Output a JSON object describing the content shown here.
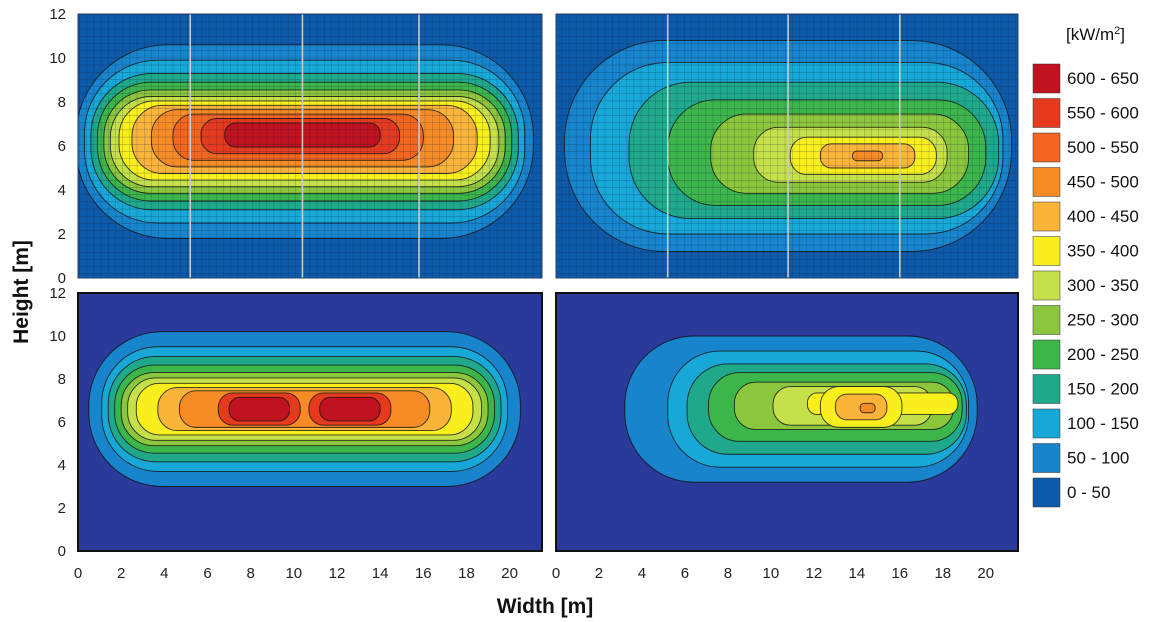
{
  "x_axis_label": "Width [m]",
  "y_axis_label": "Height [m]",
  "chart_data": [
    {
      "type": "heatmap",
      "panel": "top-left",
      "grid_overlay": true,
      "xlim": [
        0,
        21.5
      ],
      "ylim": [
        0,
        12
      ],
      "x_ticks": [
        "0",
        "2",
        "4",
        "6",
        "8",
        "10",
        "12",
        "14",
        "16",
        "18",
        "20"
      ],
      "y_ticks": [
        "0",
        "2",
        "4",
        "6",
        "8",
        "10",
        "12"
      ],
      "vertical_lines_x": [
        5.2,
        10.4,
        15.8
      ],
      "contours": [
        {
          "level": "0-50",
          "rx": 0,
          "ry": 0
        },
        {
          "level": "50-100",
          "cx": 10.5,
          "cy": 6.2,
          "rx": 10.6,
          "ry": 4.4,
          "r": 0.95
        },
        {
          "level": "100-150",
          "cx": 10.5,
          "cy": 6.2,
          "rx": 10.2,
          "ry": 3.7,
          "r": 0.9
        },
        {
          "level": "150-200",
          "cx": 10.5,
          "cy": 6.2,
          "rx": 9.9,
          "ry": 3.1,
          "r": 0.9
        },
        {
          "level": "200-250",
          "cx": 10.5,
          "cy": 6.2,
          "rx": 9.6,
          "ry": 2.7,
          "r": 0.9
        },
        {
          "level": "250-300",
          "cx": 10.5,
          "cy": 6.2,
          "rx": 9.3,
          "ry": 2.35,
          "r": 0.9
        },
        {
          "level": "300-350",
          "cx": 10.5,
          "cy": 6.2,
          "rx": 9.0,
          "ry": 2.05,
          "r": 0.9
        },
        {
          "level": "350-400",
          "cx": 10.5,
          "cy": 6.25,
          "rx": 8.6,
          "ry": 1.8,
          "r": 0.9
        },
        {
          "level": "400-450",
          "cx": 10.5,
          "cy": 6.3,
          "rx": 8.0,
          "ry": 1.55,
          "r": 0.9
        },
        {
          "level": "450-500",
          "cx": 10.4,
          "cy": 6.35,
          "rx": 7.0,
          "ry": 1.3,
          "r": 0.9
        },
        {
          "level": "500-550",
          "cx": 10.2,
          "cy": 6.4,
          "rx": 5.8,
          "ry": 1.05,
          "r": 0.9
        },
        {
          "level": "550-600",
          "cx": 10.3,
          "cy": 6.45,
          "rx": 4.6,
          "ry": 0.8,
          "r": 0.9
        },
        {
          "level": "600-650",
          "cx": 10.4,
          "cy": 6.5,
          "rx": 3.6,
          "ry": 0.55,
          "r": 0.9
        }
      ]
    },
    {
      "type": "heatmap",
      "panel": "top-right",
      "grid_overlay": true,
      "xlim": [
        0,
        21.5
      ],
      "ylim": [
        0,
        12
      ],
      "vertical_lines_x": [
        5.2,
        10.8,
        16.0
      ],
      "contours": [
        {
          "level": "0-50",
          "rx": 0,
          "ry": 0
        },
        {
          "level": "50-100",
          "cx": 10.8,
          "cy": 6.0,
          "rx": 10.4,
          "ry": 4.8,
          "r": 0.95
        },
        {
          "level": "100-150",
          "cx": 11.2,
          "cy": 5.9,
          "rx": 9.6,
          "ry": 3.9,
          "r": 0.9
        },
        {
          "level": "150-200",
          "cx": 12.0,
          "cy": 5.8,
          "rx": 8.6,
          "ry": 3.1,
          "r": 0.9
        },
        {
          "level": "200-250",
          "cx": 12.6,
          "cy": 5.7,
          "rx": 7.4,
          "ry": 2.4,
          "r": 0.9
        },
        {
          "level": "250-300",
          "cx": 13.2,
          "cy": 5.65,
          "rx": 6.0,
          "ry": 1.8,
          "r": 0.9
        },
        {
          "level": "300-350",
          "cx": 13.7,
          "cy": 5.6,
          "rx": 4.5,
          "ry": 1.25,
          "r": 0.9
        },
        {
          "level": "350-400",
          "cx": 14.3,
          "cy": 5.55,
          "rx": 3.4,
          "ry": 0.85,
          "r": 0.9
        },
        {
          "level": "400-450",
          "cx": 14.5,
          "cy": 5.55,
          "rx": 2.2,
          "ry": 0.55,
          "r": 0.9
        },
        {
          "level": "450-500",
          "cx": 14.5,
          "cy": 5.55,
          "rx": 0.7,
          "ry": 0.22,
          "r": 0.9
        }
      ]
    },
    {
      "type": "heatmap",
      "panel": "bottom-left",
      "grid_overlay": false,
      "xlim": [
        0,
        21.5
      ],
      "ylim": [
        0,
        12
      ],
      "x_ticks": [
        "0",
        "2",
        "4",
        "6",
        "8",
        "10",
        "12",
        "14",
        "16",
        "18",
        "20"
      ],
      "y_ticks": [
        "0",
        "2",
        "4",
        "6",
        "8",
        "10",
        "12"
      ],
      "contours": [
        {
          "level": "0-50",
          "rx": 0,
          "ry": 0
        },
        {
          "level": "50-100",
          "cx": 10.5,
          "cy": 6.6,
          "rx": 10.0,
          "ry": 3.6,
          "r": 0.95
        },
        {
          "level": "100-150",
          "cx": 10.5,
          "cy": 6.6,
          "rx": 9.4,
          "ry": 2.9,
          "r": 0.9
        },
        {
          "level": "150-200",
          "cx": 10.5,
          "cy": 6.6,
          "rx": 9.1,
          "ry": 2.45,
          "r": 0.9
        },
        {
          "level": "200-250",
          "cx": 10.5,
          "cy": 6.6,
          "rx": 8.8,
          "ry": 2.05,
          "r": 0.9
        },
        {
          "level": "250-300",
          "cx": 10.5,
          "cy": 6.6,
          "rx": 8.5,
          "ry": 1.7,
          "r": 0.9
        },
        {
          "level": "300-350",
          "cx": 10.5,
          "cy": 6.6,
          "rx": 8.2,
          "ry": 1.45,
          "r": 0.9
        },
        {
          "level": "350-400",
          "cx": 10.5,
          "cy": 6.6,
          "rx": 7.8,
          "ry": 1.2,
          "r": 0.9
        },
        {
          "level": "400-450",
          "cx": 10.5,
          "cy": 6.6,
          "rx": 6.8,
          "ry": 1.0,
          "r": 0.9
        },
        {
          "level": "450-500",
          "cx": 10.5,
          "cy": 6.6,
          "rx": 5.8,
          "ry": 0.85,
          "r": 0.9
        },
        {
          "level": "550-600",
          "cx": 8.4,
          "cy": 6.6,
          "rx": 1.9,
          "ry": 0.75,
          "r": 0.9
        },
        {
          "level": "550-600",
          "cx": 12.6,
          "cy": 6.6,
          "rx": 1.9,
          "ry": 0.75,
          "r": 0.9
        },
        {
          "level": "600-650",
          "cx": 8.4,
          "cy": 6.6,
          "rx": 1.4,
          "ry": 0.55,
          "r": 0.9
        },
        {
          "level": "600-650",
          "cx": 12.6,
          "cy": 6.6,
          "rx": 1.4,
          "ry": 0.55,
          "r": 0.9
        }
      ]
    },
    {
      "type": "heatmap",
      "panel": "bottom-right",
      "grid_overlay": false,
      "xlim": [
        0,
        21.5
      ],
      "ylim": [
        0,
        12
      ],
      "x_ticks": [
        "0",
        "2",
        "4",
        "6",
        "8",
        "10",
        "12",
        "14",
        "16",
        "18",
        "20"
      ],
      "contours": [
        {
          "level": "0-50",
          "rx": 0,
          "ry": 0
        },
        {
          "level": "50-100",
          "cx": 11.4,
          "cy": 6.6,
          "rx": 8.2,
          "ry": 3.4,
          "r": 0.95
        },
        {
          "level": "100-150",
          "cx": 12.2,
          "cy": 6.6,
          "rx": 7.0,
          "ry": 2.7,
          "r": 0.9
        },
        {
          "level": "150-200",
          "cx": 12.6,
          "cy": 6.6,
          "rx": 6.5,
          "ry": 2.1,
          "r": 0.9
        },
        {
          "level": "200-250",
          "cx": 13.0,
          "cy": 6.7,
          "rx": 5.9,
          "ry": 1.6,
          "r": 0.9
        },
        {
          "level": "250-300",
          "cx": 13.4,
          "cy": 6.75,
          "rx": 5.1,
          "ry": 1.1,
          "r": 0.9
        },
        {
          "level": "300-350",
          "cx": 13.8,
          "cy": 6.75,
          "rx": 3.7,
          "ry": 0.9,
          "r": 0.9
        },
        {
          "level": "350-400",
          "cx": 15.2,
          "cy": 6.85,
          "rx": 3.5,
          "ry": 0.5,
          "r": 0.9
        },
        {
          "level": "350-400",
          "cx": 14.2,
          "cy": 6.7,
          "rx": 1.9,
          "ry": 0.95,
          "r": 0.9
        },
        {
          "level": "400-450",
          "cx": 14.2,
          "cy": 6.7,
          "rx": 1.2,
          "ry": 0.6,
          "r": 0.9
        },
        {
          "level": "450-500",
          "cx": 14.5,
          "cy": 6.65,
          "rx": 0.35,
          "ry": 0.22,
          "r": 0.9
        }
      ]
    }
  ],
  "legend": {
    "title_prefix": "[kW/m",
    "title_sup": "2",
    "title_suffix": "]",
    "placement": "right",
    "entries": [
      {
        "label": "600 - 650",
        "color": "#c1121f"
      },
      {
        "label": "550 - 600",
        "color": "#e63a1f"
      },
      {
        "label": "500 - 550",
        "color": "#f2661f"
      },
      {
        "label": "450 - 500",
        "color": "#f78c26"
      },
      {
        "label": "400 - 450",
        "color": "#fab43a"
      },
      {
        "label": "350 - 400",
        "color": "#f8ef1c"
      },
      {
        "label": "300 - 350",
        "color": "#c6e04a"
      },
      {
        "label": "250 - 300",
        "color": "#8cc63c"
      },
      {
        "label": "200 - 250",
        "color": "#3cb54a"
      },
      {
        "label": "150 - 200",
        "color": "#1fa98a"
      },
      {
        "label": "100 - 150",
        "color": "#18a8d8"
      },
      {
        "label": "50 - 100",
        "color": "#1784cc"
      },
      {
        "label": "0 - 50",
        "color": "#0c5aa8"
      }
    ]
  },
  "colors": {
    "0-50": "#0c5aa8",
    "50-100": "#1784cc",
    "100-150": "#18a8d8",
    "150-200": "#1fa98a",
    "200-250": "#3cb54a",
    "250-300": "#8cc63c",
    "300-350": "#c6e04a",
    "350-400": "#f8ef1c",
    "400-450": "#fab43a",
    "450-500": "#f78c26",
    "500-550": "#f2661f",
    "550-600": "#e63a1f",
    "600-650": "#c1121f",
    "bottom_background": "#2a3a9a"
  }
}
